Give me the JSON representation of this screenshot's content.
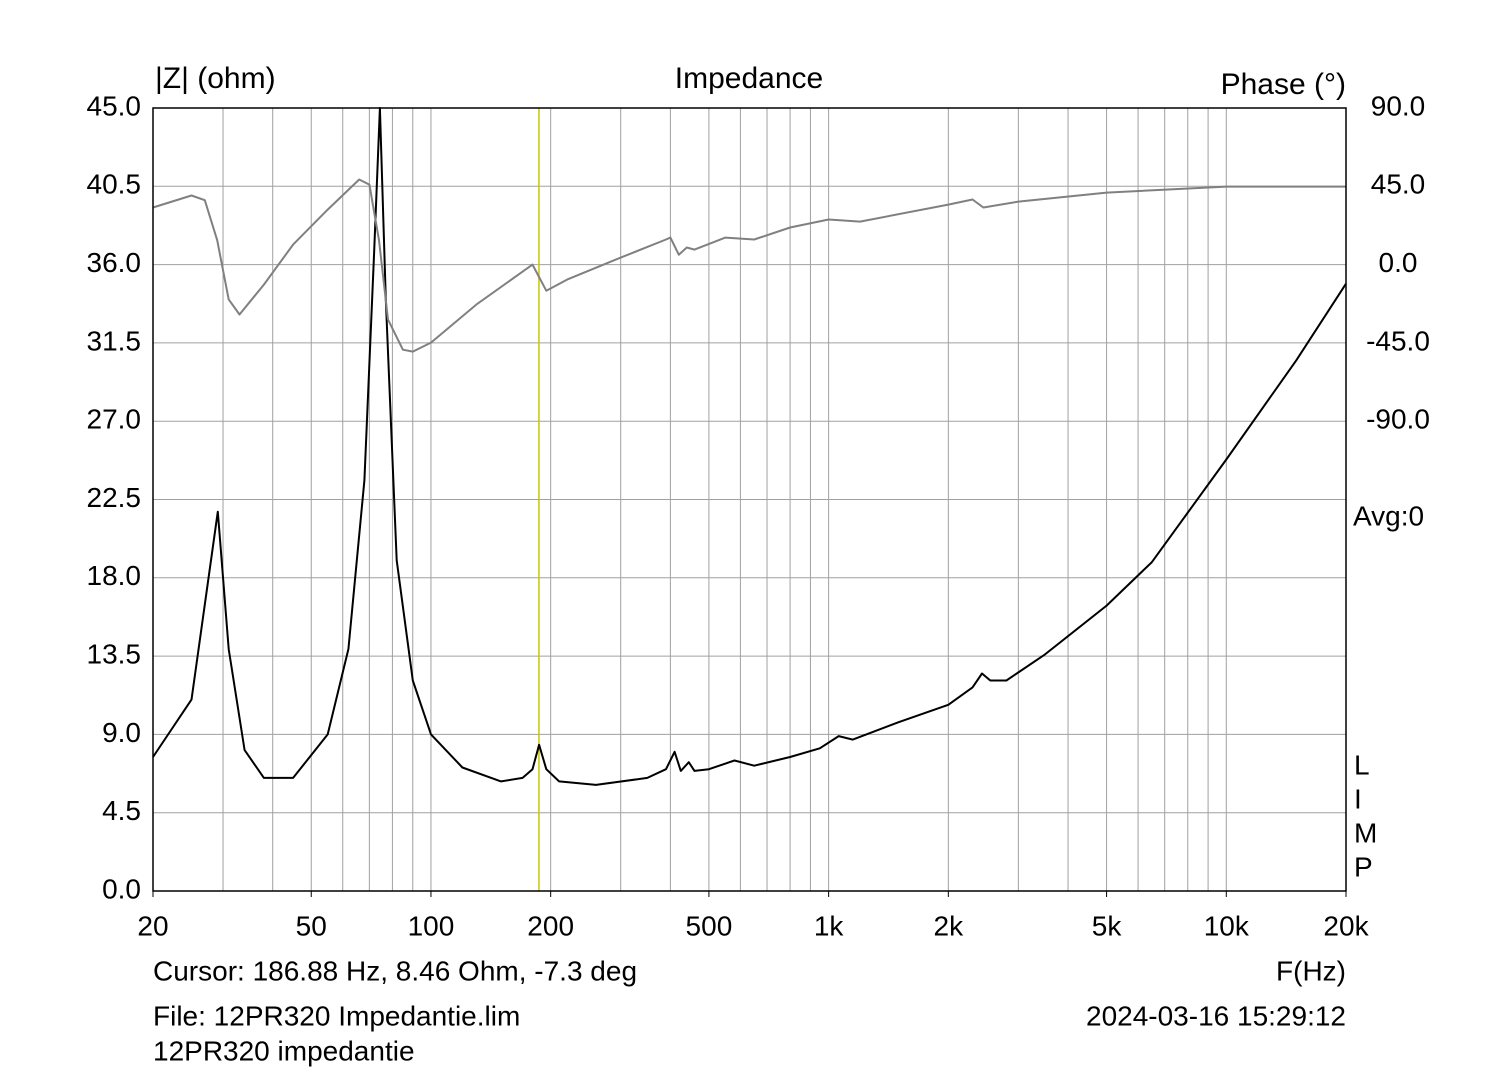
{
  "chart_data": {
    "type": "line",
    "title": "Impedance",
    "ylabel": "|Z| (ohm)",
    "y2label": "Phase (°)",
    "xlabel": "F(Hz)",
    "xscale": "log",
    "xlim": [
      20,
      20000
    ],
    "xticks": [
      20,
      50,
      100,
      200,
      500,
      {
        "value": 1000,
        "label": "1k"
      },
      {
        "value": 2000,
        "label": "2k"
      },
      {
        "value": 5000,
        "label": "5k"
      },
      {
        "value": 10000,
        "label": "10k"
      },
      {
        "value": 20000,
        "label": "20k"
      }
    ],
    "xgrid": [
      20,
      30,
      40,
      50,
      60,
      70,
      80,
      90,
      100,
      200,
      300,
      400,
      500,
      600,
      700,
      800,
      900,
      1000,
      2000,
      3000,
      4000,
      5000,
      6000,
      7000,
      8000,
      9000,
      10000,
      20000
    ],
    "ylim": [
      0,
      45
    ],
    "yticks": [
      {
        "value": 0,
        "label": "0.0"
      },
      {
        "value": 4.5,
        "label": "4.5"
      },
      {
        "value": 9,
        "label": "9.0"
      },
      {
        "value": 13.5,
        "label": "13.5"
      },
      {
        "value": 18,
        "label": "18.0"
      },
      {
        "value": 22.5,
        "label": "22.5"
      },
      {
        "value": 27,
        "label": "27.0"
      },
      {
        "value": 31.5,
        "label": "31.5"
      },
      {
        "value": 36,
        "label": "36.0"
      },
      {
        "value": 40.5,
        "label": "40.5"
      },
      {
        "value": 45,
        "label": "45.0"
      }
    ],
    "y2lim": [
      -360,
      90
    ],
    "y2ticks": [
      {
        "value": 90,
        "label": "90.0"
      },
      {
        "value": 45,
        "label": "45.0"
      },
      {
        "value": 0,
        "label": "0.0"
      },
      {
        "value": -45,
        "label": "-45.0"
      },
      {
        "value": -90,
        "label": "-90.0"
      }
    ],
    "grid": true,
    "cursor": 186.88,
    "cursor_color": "#c8c800",
    "cursor_text": "Cursor: 186.88 Hz, 8.46 Ohm, -7.3 deg",
    "file_text": "File: 12PR320 Impedantie.lim",
    "timestamp": "2024-03-16 15:29:12",
    "description": "12PR320 impedantie",
    "avg_text": "Avg:0",
    "logo": [
      "L",
      "I",
      "M",
      "P"
    ],
    "series": [
      {
        "color": "#000000",
        "x": [
          20,
          25,
          29.1,
          31,
          34,
          38,
          45,
          55,
          62,
          68,
          72,
          74.4,
          77,
          82,
          90,
          100,
          120,
          150,
          170,
          180,
          187,
          195,
          210,
          260,
          350,
          390,
          410,
          425,
          445,
          460,
          500,
          580,
          650,
          800,
          950,
          1060,
          1150,
          1500,
          2000,
          2300,
          2430,
          2550,
          2800,
          3500,
          5000,
          6500,
          10000,
          15000,
          20000
        ],
        "values": [
          7.7,
          11.0,
          21.8,
          13.9,
          8.1,
          6.5,
          6.5,
          9.0,
          13.9,
          23.6,
          36.8,
          45,
          34,
          19,
          12.1,
          9.0,
          7.1,
          6.3,
          6.5,
          7.0,
          8.4,
          7.0,
          6.3,
          6.1,
          6.5,
          7.0,
          8.0,
          6.9,
          7.4,
          6.9,
          7.0,
          7.5,
          7.2,
          7.7,
          8.2,
          8.9,
          8.7,
          9.7,
          10.7,
          11.7,
          12.5,
          12.1,
          12.1,
          13.6,
          16.4,
          18.9,
          24.8,
          30.5,
          34.9
        ]
      },
      {
        "color": "#808080",
        "axis": "y2",
        "x": [
          20,
          25,
          27,
          29,
          31,
          33,
          38,
          45,
          55,
          66,
          70,
          74,
          78,
          85,
          90,
          100,
          130,
          180,
          195,
          220,
          300,
          390,
          400,
          420,
          440,
          460,
          550,
          650,
          800,
          1000,
          1200,
          2000,
          2300,
          2450,
          3000,
          5000,
          10000,
          20000
        ],
        "values": [
          32.8,
          39.7,
          37,
          14,
          -20,
          -28.7,
          -11.5,
          11.5,
          31.6,
          48.9,
          46,
          14,
          -31.6,
          -48.9,
          -50,
          -44.8,
          -23,
          0,
          -15,
          -8.6,
          4,
          14.4,
          15.5,
          5.7,
          9.8,
          8.6,
          15.5,
          14.4,
          21.3,
          25.9,
          24.7,
          34.5,
          37.4,
          32.8,
          36.2,
          41.4,
          44.8,
          44.8
        ]
      }
    ]
  }
}
